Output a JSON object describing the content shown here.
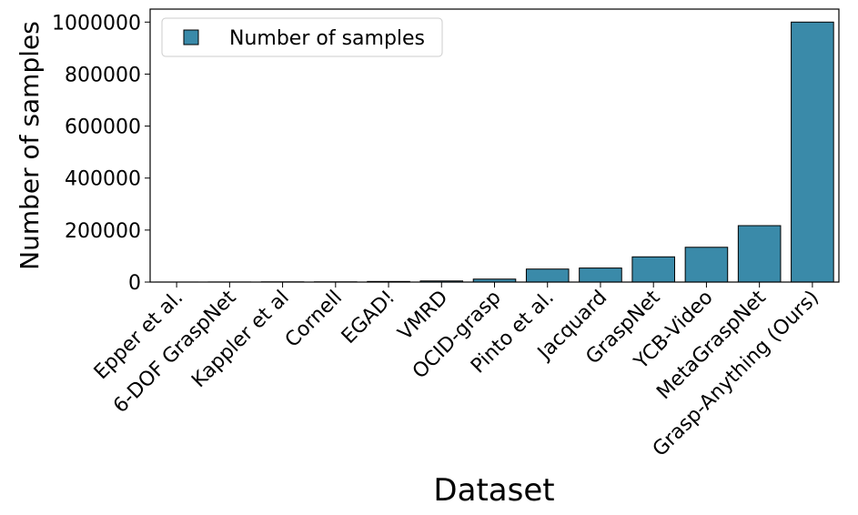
{
  "chart_data": {
    "type": "bar",
    "title": "",
    "xlabel": "Dataset",
    "ylabel": "Number of samples",
    "categories": [
      "Epper et al.",
      "6-DOF GraspNet",
      "Kappler et al",
      "Cornell",
      "EGAD!",
      "VMRD",
      "OCID-grasp",
      "Pinto et al.",
      "Jacquard",
      "GraspNet",
      "YCB-Video",
      "MetaGraspNet",
      "Grasp-Anything (Ours)"
    ],
    "series": [
      {
        "name": "Number of samples",
        "color": "#3a8aa9",
        "values": [
          100,
          300,
          800,
          885,
          2331,
          4233,
          11400,
          50000,
          54000,
          97000,
          133827,
          217000,
          1000000
        ]
      }
    ],
    "ylim": [
      0,
      1050000
    ],
    "yticks": [
      0,
      200000,
      400000,
      600000,
      800000,
      1000000
    ],
    "grid": false,
    "legend_position": "top-left"
  }
}
